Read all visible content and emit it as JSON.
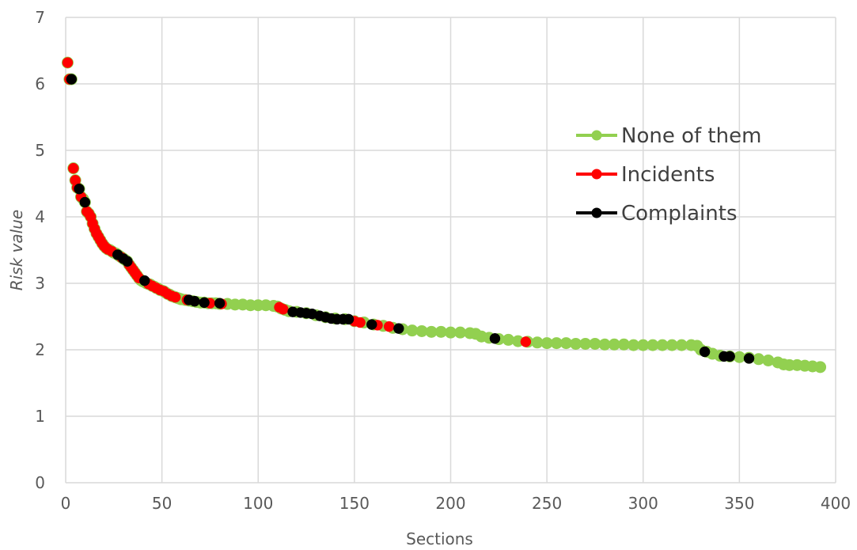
{
  "chart_data": {
    "type": "scatter",
    "xlabel": "Sections",
    "ylabel": "Risk value",
    "xlim": [
      0,
      400
    ],
    "ylim": [
      0,
      7
    ],
    "x_ticks": [
      0,
      50,
      100,
      150,
      200,
      250,
      300,
      350,
      400
    ],
    "y_ticks": [
      0,
      1,
      2,
      3,
      4,
      5,
      6,
      7
    ],
    "grid": true,
    "legend_position": "right",
    "series": [
      {
        "name": "None of them",
        "color": "#92d050",
        "points": [
          [
            1,
            6.32
          ],
          [
            2,
            6.07
          ],
          [
            3,
            6.07
          ],
          [
            4,
            4.73
          ],
          [
            5,
            4.55
          ],
          [
            6,
            4.44
          ],
          [
            7,
            4.42
          ],
          [
            8,
            4.3
          ],
          [
            9,
            4.27
          ],
          [
            10,
            4.22
          ],
          [
            11,
            4.08
          ],
          [
            12,
            4.05
          ],
          [
            13,
            4.0
          ],
          [
            14,
            3.9
          ],
          [
            15,
            3.82
          ],
          [
            16,
            3.75
          ],
          [
            17,
            3.7
          ],
          [
            18,
            3.65
          ],
          [
            19,
            3.6
          ],
          [
            20,
            3.56
          ],
          [
            21,
            3.53
          ],
          [
            22,
            3.51
          ],
          [
            23,
            3.5
          ],
          [
            24,
            3.48
          ],
          [
            25,
            3.46
          ],
          [
            26,
            3.45
          ],
          [
            27,
            3.43
          ],
          [
            28,
            3.41
          ],
          [
            29,
            3.39
          ],
          [
            30,
            3.37
          ],
          [
            31,
            3.35
          ],
          [
            32,
            3.33
          ],
          [
            33,
            3.28
          ],
          [
            34,
            3.24
          ],
          [
            35,
            3.2
          ],
          [
            36,
            3.16
          ],
          [
            37,
            3.12
          ],
          [
            38,
            3.08
          ],
          [
            39,
            3.05
          ],
          [
            40,
            3.03
          ],
          [
            41,
            3.02
          ],
          [
            42,
            3.0
          ],
          [
            43,
            2.99
          ],
          [
            44,
            2.98
          ],
          [
            45,
            2.96
          ],
          [
            46,
            2.95
          ],
          [
            47,
            2.93
          ],
          [
            48,
            2.92
          ],
          [
            49,
            2.9
          ],
          [
            50,
            2.89
          ],
          [
            51,
            2.88
          ],
          [
            52,
            2.86
          ],
          [
            53,
            2.84
          ],
          [
            54,
            2.83
          ],
          [
            55,
            2.81
          ],
          [
            56,
            2.8
          ],
          [
            57,
            2.79
          ],
          [
            58,
            2.78
          ],
          [
            59,
            2.77
          ],
          [
            60,
            2.76
          ],
          [
            62,
            2.75
          ],
          [
            64,
            2.74
          ],
          [
            66,
            2.73
          ],
          [
            68,
            2.72
          ],
          [
            70,
            2.71
          ],
          [
            72,
            2.71
          ],
          [
            74,
            2.7
          ],
          [
            76,
            2.7
          ],
          [
            78,
            2.7
          ],
          [
            80,
            2.69
          ],
          [
            84,
            2.69
          ],
          [
            88,
            2.68
          ],
          [
            92,
            2.68
          ],
          [
            96,
            2.67
          ],
          [
            100,
            2.67
          ],
          [
            104,
            2.67
          ],
          [
            108,
            2.66
          ],
          [
            110,
            2.65
          ],
          [
            112,
            2.62
          ],
          [
            114,
            2.6
          ],
          [
            116,
            2.58
          ],
          [
            120,
            2.57
          ],
          [
            125,
            2.55
          ],
          [
            130,
            2.52
          ],
          [
            135,
            2.49
          ],
          [
            140,
            2.47
          ],
          [
            145,
            2.46
          ],
          [
            150,
            2.43
          ],
          [
            155,
            2.41
          ],
          [
            160,
            2.38
          ],
          [
            165,
            2.36
          ],
          [
            170,
            2.33
          ],
          [
            175,
            2.31
          ],
          [
            180,
            2.29
          ],
          [
            185,
            2.28
          ],
          [
            190,
            2.27
          ],
          [
            195,
            2.27
          ],
          [
            200,
            2.26
          ],
          [
            205,
            2.26
          ],
          [
            210,
            2.25
          ],
          [
            213,
            2.24
          ],
          [
            216,
            2.2
          ],
          [
            220,
            2.18
          ],
          [
            225,
            2.16
          ],
          [
            230,
            2.15
          ],
          [
            235,
            2.13
          ],
          [
            240,
            2.12
          ],
          [
            245,
            2.11
          ],
          [
            250,
            2.1
          ],
          [
            255,
            2.1
          ],
          [
            260,
            2.1
          ],
          [
            265,
            2.09
          ],
          [
            270,
            2.09
          ],
          [
            275,
            2.09
          ],
          [
            280,
            2.08
          ],
          [
            285,
            2.08
          ],
          [
            290,
            2.08
          ],
          [
            295,
            2.07
          ],
          [
            300,
            2.07
          ],
          [
            305,
            2.07
          ],
          [
            310,
            2.07
          ],
          [
            315,
            2.07
          ],
          [
            320,
            2.07
          ],
          [
            325,
            2.07
          ],
          [
            328,
            2.06
          ],
          [
            330,
            2.0
          ],
          [
            333,
            1.97
          ],
          [
            336,
            1.94
          ],
          [
            340,
            1.91
          ],
          [
            345,
            1.9
          ],
          [
            350,
            1.89
          ],
          [
            355,
            1.88
          ],
          [
            360,
            1.86
          ],
          [
            365,
            1.84
          ],
          [
            370,
            1.81
          ],
          [
            373,
            1.78
          ],
          [
            376,
            1.77
          ],
          [
            380,
            1.77
          ],
          [
            384,
            1.76
          ],
          [
            388,
            1.75
          ],
          [
            392,
            1.74
          ]
        ]
      },
      {
        "name": "Incidents",
        "color": "#ff0000",
        "points": [
          [
            1,
            6.32
          ],
          [
            2,
            6.07
          ],
          [
            4,
            4.73
          ],
          [
            5,
            4.55
          ],
          [
            6,
            4.44
          ],
          [
            8,
            4.3
          ],
          [
            11,
            4.08
          ],
          [
            12,
            4.05
          ],
          [
            13,
            4.0
          ],
          [
            14,
            3.9
          ],
          [
            15,
            3.82
          ],
          [
            16,
            3.75
          ],
          [
            17,
            3.7
          ],
          [
            18,
            3.65
          ],
          [
            19,
            3.6
          ],
          [
            20,
            3.56
          ],
          [
            21,
            3.53
          ],
          [
            22,
            3.51
          ],
          [
            24,
            3.48
          ],
          [
            29,
            3.39
          ],
          [
            33,
            3.28
          ],
          [
            34,
            3.24
          ],
          [
            35,
            3.2
          ],
          [
            36,
            3.16
          ],
          [
            37,
            3.12
          ],
          [
            38,
            3.08
          ],
          [
            43,
            2.99
          ],
          [
            45,
            2.96
          ],
          [
            47,
            2.93
          ],
          [
            49,
            2.9
          ],
          [
            51,
            2.88
          ],
          [
            53,
            2.84
          ],
          [
            55,
            2.81
          ],
          [
            57,
            2.79
          ],
          [
            63,
            2.75
          ],
          [
            75,
            2.7
          ],
          [
            81,
            2.69
          ],
          [
            111,
            2.64
          ],
          [
            113,
            2.61
          ],
          [
            150,
            2.43
          ],
          [
            153,
            2.41
          ],
          [
            162,
            2.37
          ],
          [
            168,
            2.35
          ],
          [
            239,
            2.12
          ]
        ]
      },
      {
        "name": "Complaints",
        "color": "#000000",
        "points": [
          [
            3,
            6.07
          ],
          [
            7,
            4.42
          ],
          [
            10,
            4.22
          ],
          [
            27,
            3.43
          ],
          [
            30,
            3.37
          ],
          [
            32,
            3.33
          ],
          [
            41,
            3.04
          ],
          [
            64,
            2.75
          ],
          [
            67,
            2.73
          ],
          [
            72,
            2.71
          ],
          [
            80,
            2.7
          ],
          [
            118,
            2.57
          ],
          [
            122,
            2.56
          ],
          [
            125,
            2.55
          ],
          [
            128,
            2.54
          ],
          [
            132,
            2.51
          ],
          [
            135,
            2.49
          ],
          [
            138,
            2.47
          ],
          [
            141,
            2.46
          ],
          [
            144,
            2.46
          ],
          [
            147,
            2.46
          ],
          [
            159,
            2.38
          ],
          [
            173,
            2.32
          ],
          [
            223,
            2.17
          ],
          [
            332,
            1.97
          ],
          [
            342,
            1.9
          ],
          [
            345,
            1.9
          ],
          [
            355,
            1.87
          ]
        ]
      }
    ]
  }
}
